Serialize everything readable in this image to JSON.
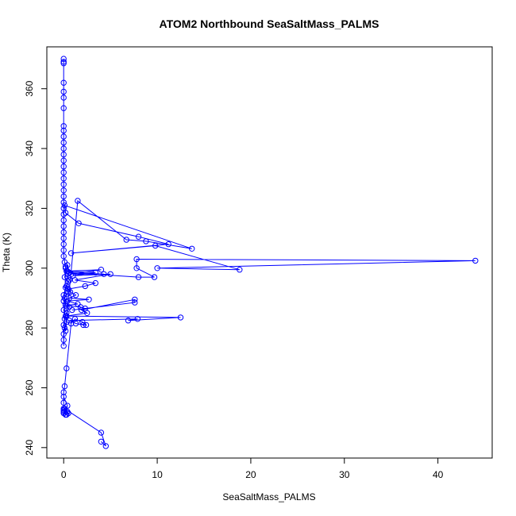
{
  "chart_data": {
    "type": "scatter",
    "title": "ATOM2 Northbound SeaSaltMass_PALMS",
    "xlabel": "SeaSaltMass_PALMS",
    "ylabel": "Theta (K)",
    "xlim": [
      -1.8,
      45.8
    ],
    "ylim": [
      236.5,
      374.0
    ],
    "x_ticks": [
      0,
      10,
      20,
      30,
      40
    ],
    "y_ticks": [
      240,
      260,
      280,
      300,
      320,
      340,
      360
    ],
    "grid": false,
    "legend": "none",
    "marker": "open-circle",
    "connect_points": true,
    "color": "#0000ff",
    "series": [
      {
        "x": [
          0.0,
          0.0,
          0.0,
          0.0,
          0.0,
          0.0,
          0.0,
          0.0,
          0.0,
          0.0,
          0.0,
          0.0,
          0.0,
          0.0,
          0.0,
          0.0,
          0.0,
          0.0,
          0.0,
          0.0,
          0.0,
          0.0,
          0.0,
          0.0,
          0.0,
          0.0,
          0.0,
          0.0,
          0.0,
          0.0,
          0.1,
          0.2,
          0.4,
          0.6,
          0.3,
          0.5,
          0.1,
          0.2,
          0.0,
          0.2,
          0.3,
          0.1,
          0.0,
          0.0,
          0.0,
          0.2,
          0.4,
          0.3,
          0.1,
          0.5,
          0.2,
          0.0,
          0.0,
          0.6,
          0.3,
          0.1,
          0.0,
          0.2,
          1.5,
          6.7,
          8.8,
          13.7,
          0.1,
          0.2,
          1.6,
          8.0,
          11.2,
          0.8,
          9.8,
          18.8,
          10.0,
          44.0,
          7.8,
          7.8,
          9.7,
          8.0,
          0.6,
          4.3,
          0.8,
          4.0,
          0.4,
          3.4,
          1.0,
          5.0,
          1.2,
          3.4,
          2.3,
          0.5,
          0.7,
          1.3,
          0.6,
          2.7,
          0.4,
          1.5,
          0.2,
          1.8,
          2.3,
          0.9,
          7.6,
          7.6,
          1.9,
          2.5,
          0.3,
          12.5,
          6.9,
          7.9,
          0.6,
          1.3,
          2.1,
          2.4,
          2.0,
          1.2,
          0.8,
          0.3,
          0.1,
          0.0,
          0.0,
          0.0,
          0.2,
          0.4,
          0.0,
          0.0,
          0.5,
          0.4,
          0.3,
          0.0,
          0.0,
          0.1,
          4.0,
          4.5,
          4.0
        ],
        "y": [
          370.0,
          368.5,
          369.0,
          362.0,
          359.0,
          357.0,
          353.5,
          347.5,
          346.0,
          344.0,
          342.0,
          340.0,
          338.0,
          336.0,
          334.0,
          332.0,
          330.0,
          328.0,
          326.0,
          324.0,
          322.0,
          320.0,
          318.0,
          316.0,
          314.0,
          312.0,
          310.0,
          308.0,
          306.0,
          304.0,
          302.0,
          300.0,
          298.0,
          296.0,
          294.0,
          292.0,
          290.0,
          288.0,
          286.0,
          284.0,
          282.0,
          280.0,
          278.0,
          276.0,
          274.0,
          300.5,
          301.0,
          299.0,
          297.0,
          295.5,
          293.5,
          291.0,
          289.0,
          287.0,
          285.0,
          283.0,
          281.0,
          279.0,
          322.5,
          309.5,
          309.0,
          306.5,
          321.0,
          318.5,
          315.0,
          310.5,
          308.0,
          305.0,
          307.5,
          299.5,
          300.0,
          302.5,
          303.0,
          300.0,
          297.0,
          297.0,
          298.5,
          298.0,
          298.0,
          299.5,
          299.0,
          298.5,
          297.5,
          298.0,
          296.0,
          295.0,
          294.0,
          293.0,
          292.0,
          291.0,
          290.0,
          289.5,
          289.0,
          288.0,
          287.5,
          287.0,
          286.5,
          286.0,
          288.5,
          289.5,
          286.0,
          285.0,
          284.0,
          283.5,
          282.5,
          283.0,
          282.5,
          281.5,
          281.0,
          281.0,
          282.0,
          283.0,
          281.5,
          266.5,
          260.5,
          258.5,
          255.0,
          252.5,
          251.0,
          254.0,
          257.0,
          253.0,
          251.5,
          252.0,
          251.0,
          251.5,
          252.0,
          253.0,
          245.0,
          240.5,
          242.0
        ]
      }
    ]
  }
}
